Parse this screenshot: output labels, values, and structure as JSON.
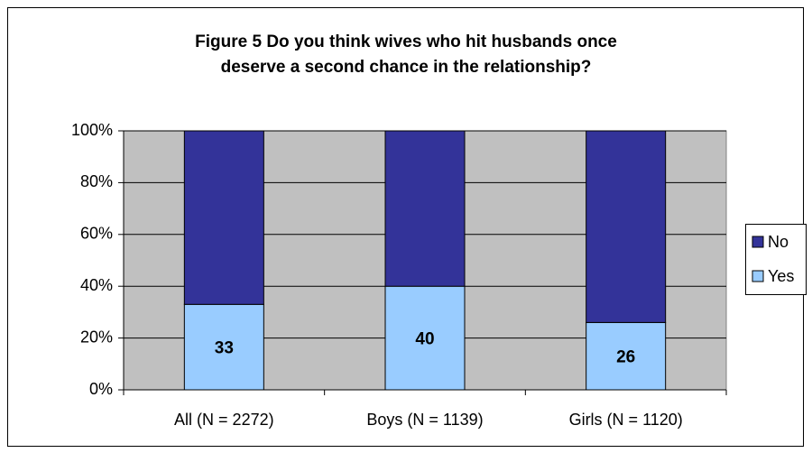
{
  "chart_data": {
    "type": "stacked_bar",
    "title": [
      "Figure 5  Do you think wives who hit husbands once",
      "deserve a second chance in the relationship?"
    ],
    "categories": [
      "All (N = 2272)",
      "Boys (N = 1139)",
      "Girls (N = 1120)"
    ],
    "series": [
      {
        "name": "Yes",
        "color": "#99ccff",
        "values": [
          33,
          40,
          26
        ]
      },
      {
        "name": "No",
        "color": "#333399",
        "values": [
          67,
          60,
          74
        ]
      }
    ],
    "data_labels_series": "Yes",
    "ylim": [
      0,
      100
    ],
    "yticks": [
      {
        "value": 0,
        "label": "0%"
      },
      {
        "value": 20,
        "label": "20%"
      },
      {
        "value": 40,
        "label": "40%"
      },
      {
        "value": 60,
        "label": "60%"
      },
      {
        "value": 80,
        "label": "80%"
      },
      {
        "value": 100,
        "label": "100%"
      }
    ],
    "grid": true,
    "plot_background": "#c0c0c0",
    "legend": "right"
  }
}
